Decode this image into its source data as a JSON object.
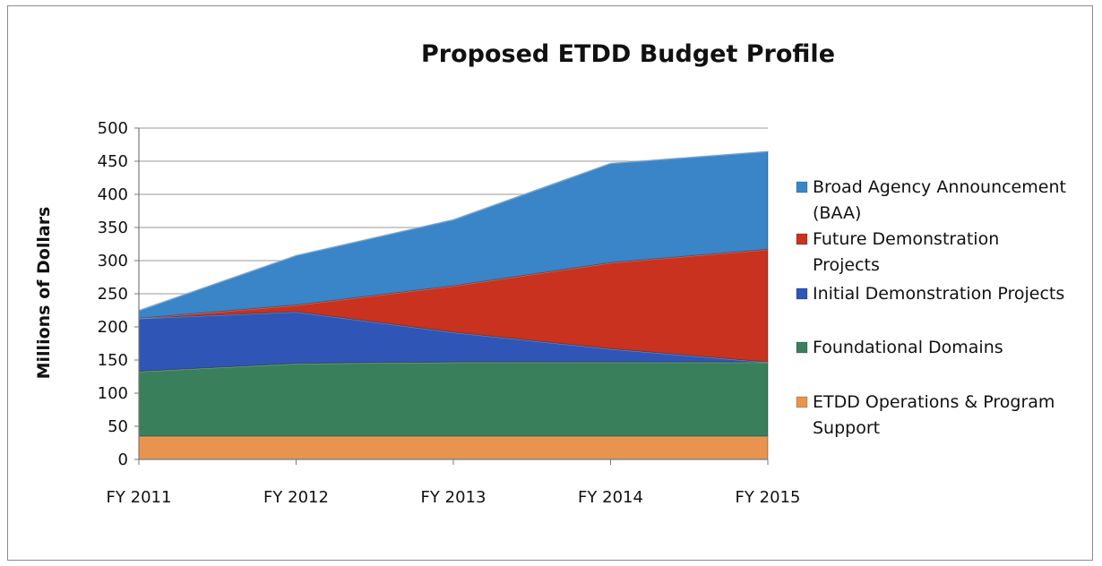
{
  "chart_data": {
    "type": "area",
    "stacked": true,
    "title": "Proposed ETDD Budget Profile",
    "xlabel": "",
    "ylabel": "Millions of Dollars",
    "ylim": [
      0,
      500
    ],
    "yticks": [
      0,
      50,
      100,
      150,
      200,
      250,
      300,
      350,
      400,
      450,
      500
    ],
    "grid": true,
    "legend_position": "right",
    "categories": [
      "FY 2011",
      "FY 2012",
      "FY 2013",
      "FY 2014",
      "FY 2015"
    ],
    "series": [
      {
        "name": "ETDD Operations & Program Support",
        "values": [
          35,
          35,
          35,
          35,
          35
        ],
        "color": "#e8944e"
      },
      {
        "name": "Foundational Domains",
        "values": [
          98,
          110,
          112,
          112,
          112
        ],
        "color": "#3a7f5c"
      },
      {
        "name": "Initial Demonstration Projects",
        "values": [
          80,
          78,
          45,
          20,
          0
        ],
        "color": "#2f56b6"
      },
      {
        "name": "Future Demonstration Projects",
        "values": [
          0,
          10,
          70,
          130,
          170
        ],
        "color": "#c8321e"
      },
      {
        "name": "Broad Agency Announcement (BAA)",
        "values": [
          12,
          75,
          100,
          150,
          148
        ],
        "color": "#3a85c8"
      }
    ],
    "legend_order": [
      {
        "series_index": 4,
        "lines": [
          "Broad Agency Announcement",
          "(BAA)"
        ]
      },
      {
        "series_index": 3,
        "lines": [
          "Future Demonstration",
          "Projects"
        ]
      },
      {
        "series_index": 2,
        "lines": [
          "Initial Demonstration Projects"
        ]
      },
      {
        "series_index": 1,
        "lines": [
          "Foundational Domains"
        ]
      },
      {
        "series_index": 0,
        "lines": [
          "ETDD Operations & Program",
          "Support"
        ]
      }
    ]
  }
}
